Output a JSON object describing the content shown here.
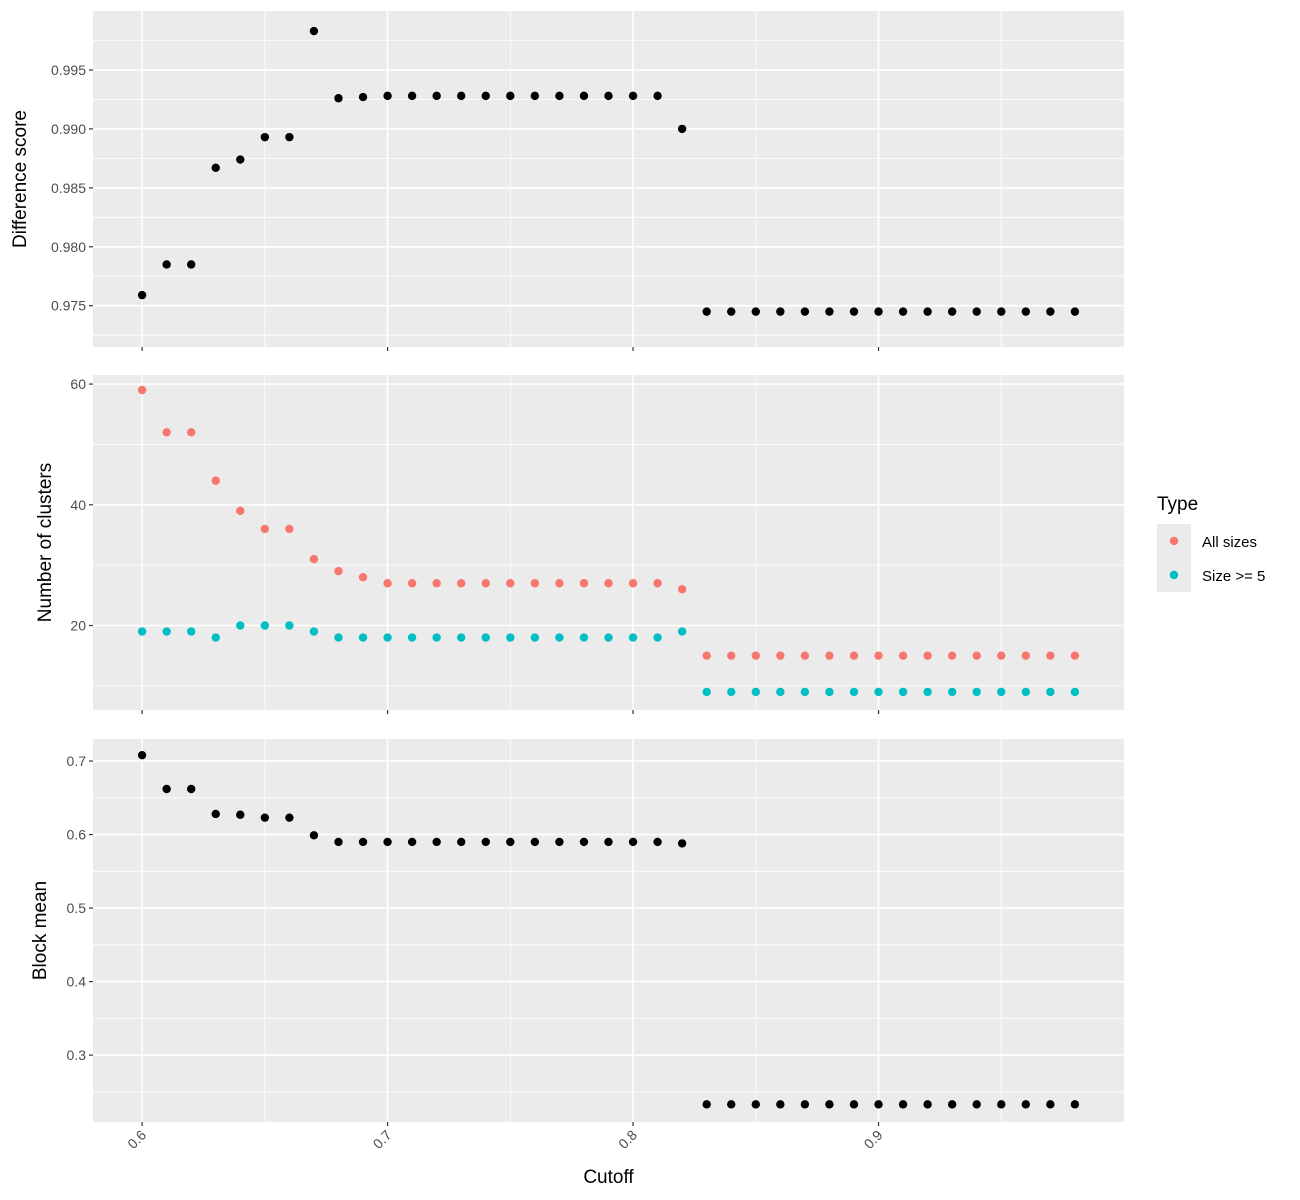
{
  "chart_data": {
    "type": "scatter",
    "xlabel": "Cutoff",
    "x": [
      0.6,
      0.61,
      0.62,
      0.63,
      0.64,
      0.65,
      0.66,
      0.67,
      0.68,
      0.69,
      0.7,
      0.71,
      0.72,
      0.73,
      0.74,
      0.75,
      0.76,
      0.77,
      0.78,
      0.79,
      0.8,
      0.81,
      0.82,
      0.83,
      0.84,
      0.85,
      0.86,
      0.87,
      0.88,
      0.89,
      0.9,
      0.91,
      0.92,
      0.93,
      0.94,
      0.95,
      0.96,
      0.97,
      0.98
    ],
    "xlim": [
      0.58,
      1.0
    ],
    "x_ticks": [
      "0.6",
      "0.7",
      "0.8",
      "0.9"
    ],
    "legend": {
      "title": "Type",
      "position": "right",
      "entries": [
        {
          "name": "All sizes",
          "color": "#F8766D"
        },
        {
          "name": "Size >= 5",
          "color": "#00BFC4"
        }
      ]
    },
    "panels": [
      {
        "ylabel": "Difference score",
        "ylim": [
          0.9715,
          1.0
        ],
        "y_ticks": [
          "0.975",
          "0.980",
          "0.985",
          "0.990",
          "0.995"
        ],
        "series": [
          {
            "color": "#000000",
            "values": [
              0.9759,
              0.9785,
              0.9785,
              0.9867,
              0.9874,
              0.9893,
              0.9893,
              0.9983,
              0.9926,
              0.9927,
              0.9928,
              0.9928,
              0.9928,
              0.9928,
              0.9928,
              0.9928,
              0.9928,
              0.9928,
              0.9928,
              0.9928,
              0.9928,
              0.9928,
              0.99,
              0.9745,
              0.9745,
              0.9745,
              0.9745,
              0.9745,
              0.9745,
              0.9745,
              0.9745,
              0.9745,
              0.9745,
              0.9745,
              0.9745,
              0.9745,
              0.9745,
              0.9745,
              0.9745
            ]
          }
        ]
      },
      {
        "ylabel": "Number of clusters",
        "ylim": [
          6,
          61.5
        ],
        "y_ticks": [
          "20",
          "40",
          "60"
        ],
        "series": [
          {
            "name": "All sizes",
            "color": "#F8766D",
            "values": [
              59,
              52,
              52,
              44,
              39,
              36,
              36,
              31,
              29,
              28,
              27,
              27,
              27,
              27,
              27,
              27,
              27,
              27,
              27,
              27,
              27,
              27,
              26,
              15,
              15,
              15,
              15,
              15,
              15,
              15,
              15,
              15,
              15,
              15,
              15,
              15,
              15,
              15,
              15
            ]
          },
          {
            "name": "Size >= 5",
            "color": "#00BFC4",
            "values": [
              19,
              19,
              19,
              18,
              20,
              20,
              20,
              19,
              18,
              18,
              18,
              18,
              18,
              18,
              18,
              18,
              18,
              18,
              18,
              18,
              18,
              18,
              19,
              9,
              9,
              9,
              9,
              9,
              9,
              9,
              9,
              9,
              9,
              9,
              9,
              9,
              9,
              9,
              9
            ]
          }
        ]
      },
      {
        "ylabel": "Block mean",
        "ylim": [
          0.209,
          0.73
        ],
        "y_ticks": [
          "0.3",
          "0.4",
          "0.5",
          "0.6",
          "0.7"
        ],
        "series": [
          {
            "color": "#000000",
            "values": [
              0.708,
              0.662,
              0.662,
              0.628,
              0.627,
              0.623,
              0.623,
              0.599,
              0.59,
              0.59,
              0.59,
              0.59,
              0.59,
              0.59,
              0.59,
              0.59,
              0.59,
              0.59,
              0.59,
              0.59,
              0.59,
              0.59,
              0.588,
              0.233,
              0.233,
              0.233,
              0.233,
              0.233,
              0.233,
              0.233,
              0.233,
              0.233,
              0.233,
              0.233,
              0.233,
              0.233,
              0.233,
              0.233,
              0.233
            ]
          }
        ]
      }
    ]
  }
}
